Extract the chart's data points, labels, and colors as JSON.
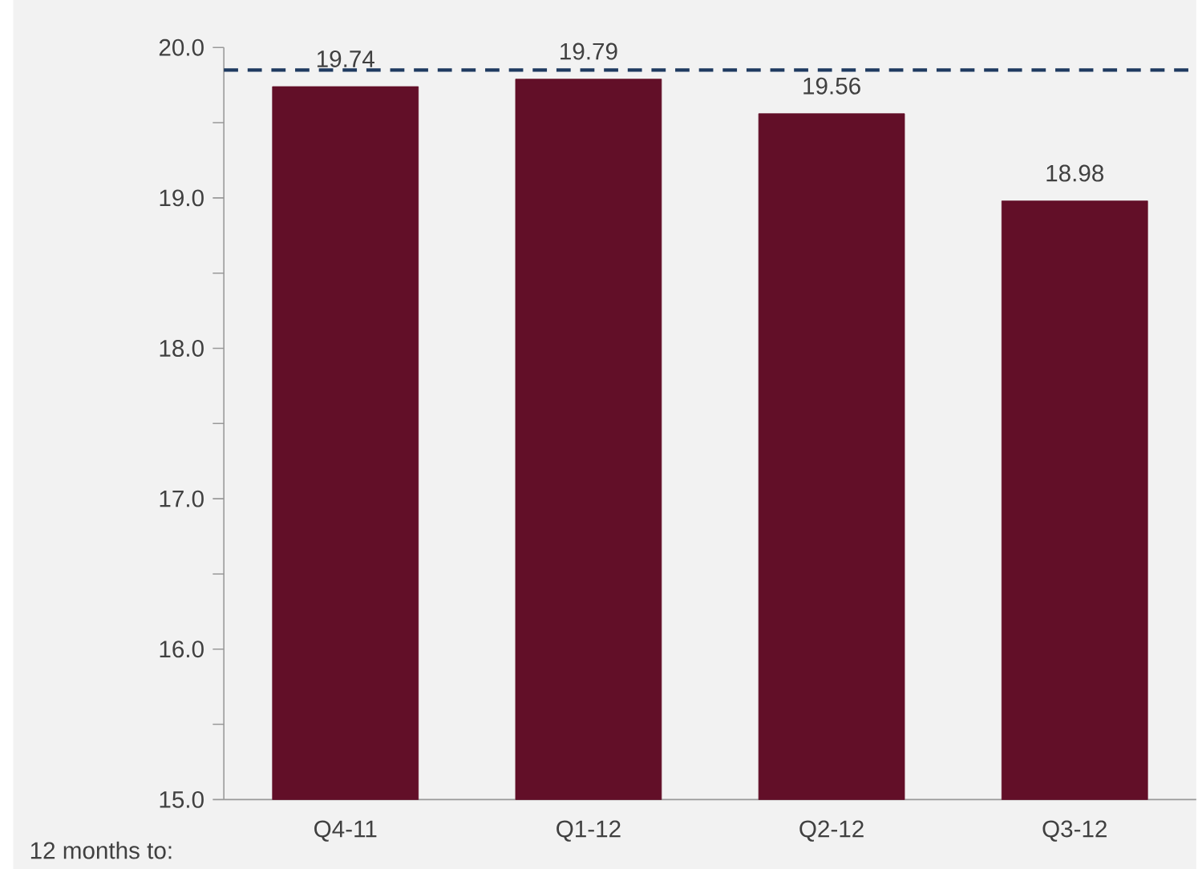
{
  "chart_data": {
    "type": "bar",
    "categories": [
      "Q4-11",
      "Q1-12",
      "Q2-12",
      "Q3-12"
    ],
    "values": [
      19.74,
      19.79,
      19.56,
      18.98
    ],
    "color": "#620f28",
    "ylim": [
      15,
      20
    ],
    "yticks": [
      {
        "value": 15,
        "label": "15.0"
      },
      {
        "value": 15.5,
        "label": null
      },
      {
        "value": 16,
        "label": "16.0"
      },
      {
        "value": 16.5,
        "label": null
      },
      {
        "value": 17,
        "label": "17.0"
      },
      {
        "value": 17.5,
        "label": null
      },
      {
        "value": 18,
        "label": "18.0"
      },
      {
        "value": 18.5,
        "label": null
      },
      {
        "value": 19,
        "label": "19.0"
      },
      {
        "value": 19.5,
        "label": null
      },
      {
        "value": 20,
        "label": "20.0"
      }
    ],
    "data_labels": true,
    "ref_lines": [
      {
        "axis": "y",
        "value": 19.85,
        "color": "#1f3a60",
        "line_style": "dashed"
      }
    ],
    "annotations": [
      "12 months to:"
    ]
  }
}
